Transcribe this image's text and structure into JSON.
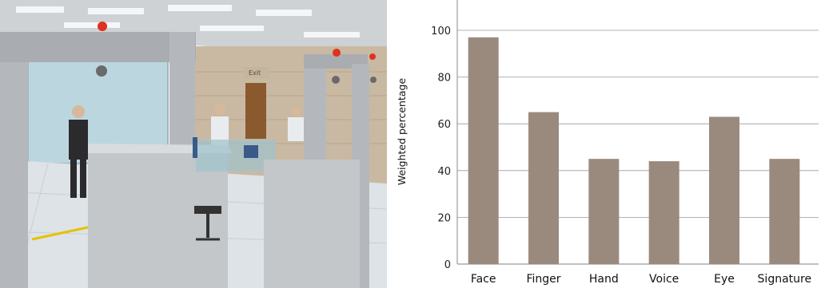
{
  "photo": {
    "sign_text": "Exit",
    "colors": {
      "wall": "#c9b9a3",
      "ceiling": "#cfd2d4",
      "floor": "#dde3e6",
      "gate_metal": "#b4b8bc",
      "glass": "#bcd6df",
      "alarm_light": "#e03020"
    }
  },
  "chart_data": {
    "type": "bar",
    "categories": [
      "Face",
      "Finger",
      "Hand",
      "Voice",
      "Eye",
      "Signature"
    ],
    "values": [
      97,
      65,
      45,
      44,
      63,
      45
    ],
    "ylabel": "Weighted percentage",
    "ylim": [
      0,
      100
    ],
    "yticks": [
      0,
      20,
      40,
      60,
      80,
      100
    ],
    "grid": true,
    "bar_color": "#9a8a7e",
    "grid_color": "#9a9a9a"
  }
}
